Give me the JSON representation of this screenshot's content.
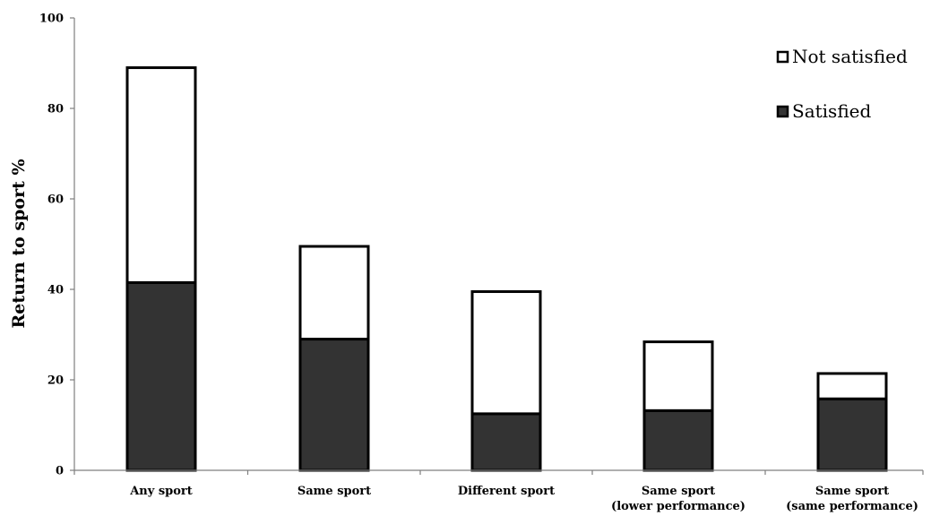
{
  "colors": {
    "satisfied": "#333333",
    "not_satisfied": "#ffffff",
    "stroke": "#000000",
    "axis": "#7f7f7f"
  },
  "chart_data": {
    "type": "bar",
    "stacked": true,
    "title": "",
    "xlabel": "",
    "ylabel": "Return to sport %",
    "ylim": [
      0,
      100
    ],
    "yticks": [
      0,
      20,
      40,
      60,
      80,
      100
    ],
    "grid": false,
    "legend_position": "top-right",
    "categories": [
      [
        "Any sport"
      ],
      [
        "Same sport"
      ],
      [
        "Different sport"
      ],
      [
        "Same sport",
        "(lower performance)"
      ],
      [
        "Same sport",
        "(same performance)"
      ]
    ],
    "series": [
      {
        "name": "Satisfied",
        "values": [
          41.5,
          29,
          12.5,
          13.2,
          15.8
        ]
      },
      {
        "name": "Not satisfied",
        "values": [
          47.5,
          20.5,
          27,
          15.2,
          5.6
        ]
      }
    ],
    "legend": [
      {
        "label": "Not satisfied",
        "series_index": 1
      },
      {
        "label": "Satisfied",
        "series_index": 0
      }
    ]
  }
}
